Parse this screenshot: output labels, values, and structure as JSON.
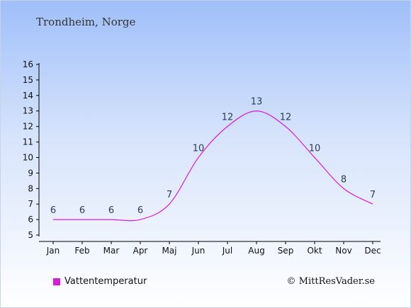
{
  "location": "Trondheim, Norge",
  "credit": "© MittResVader.se",
  "colors": {
    "line": "#d81bd8",
    "axis": "#000000"
  },
  "chart_data": {
    "type": "line",
    "title": "",
    "xlabel": "",
    "ylabel": "",
    "categories": [
      "Jan",
      "Feb",
      "Mar",
      "Apr",
      "Maj",
      "Jun",
      "Jul",
      "Aug",
      "Sep",
      "Okt",
      "Nov",
      "Dec"
    ],
    "ylim": [
      5,
      16
    ],
    "yticks": [
      5,
      6,
      7,
      8,
      9,
      10,
      11,
      12,
      13,
      14,
      15,
      16
    ],
    "grid": false,
    "legend": "bottom-left",
    "series": [
      {
        "name": "Vattentemperatur",
        "values": [
          6,
          6,
          6,
          6,
          7,
          10,
          12,
          13,
          12,
          10,
          8,
          7
        ],
        "labels": [
          "6",
          "6",
          "6",
          "6",
          "7",
          "10",
          "12",
          "13",
          "12",
          "10",
          "8",
          "7"
        ]
      }
    ]
  }
}
